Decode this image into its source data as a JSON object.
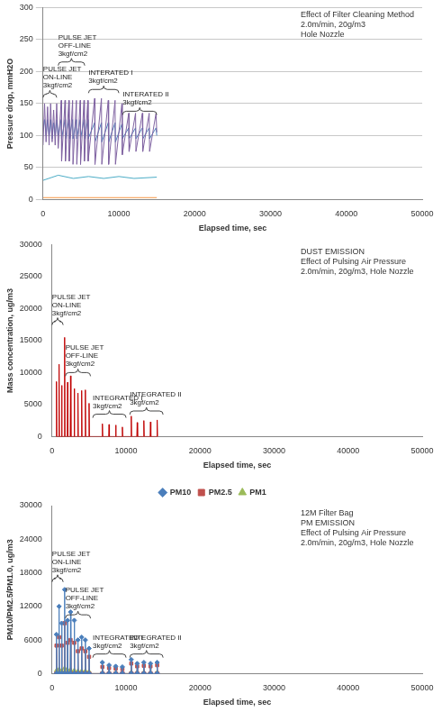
{
  "chart_data": [
    {
      "type": "line",
      "subtitle": [
        "Effect of Filter Cleaning Method",
        "2.0m/min, 20g/m3",
        "Hole Nozzle"
      ],
      "x_label": "Elapsed time, sec",
      "y_label": "Pressure drop, mmH2O",
      "xlim": [
        0,
        50000
      ],
      "xticks": [
        0,
        10000,
        20000,
        30000,
        40000,
        50000
      ],
      "ylim": [
        0,
        300
      ],
      "yticks": [
        0,
        50,
        100,
        150,
        200,
        250,
        300
      ],
      "grid": true,
      "annotations": [
        {
          "text": [
            "PULSE JET",
            "ON-LINE",
            "3kgf/cm2"
          ],
          "x": [
            0,
            1800
          ],
          "y": 165
        },
        {
          "text": [
            "PULSE JET",
            "OFF-LINE",
            "3kgf/cm2"
          ],
          "x": [
            2000,
            5500
          ],
          "y": 215
        },
        {
          "text": [
            "INTERATED I",
            "3kgf/cm2"
          ],
          "x": [
            6000,
            10000
          ],
          "y": 172
        },
        {
          "text": [
            "INTERATED II",
            "3kgf/cm2"
          ],
          "x": [
            10500,
            15000
          ],
          "y": 138
        }
      ],
      "series": [
        {
          "color": "#8064a2",
          "x": [
            0,
            200,
            400,
            600,
            800,
            1000,
            1200,
            1400,
            1600,
            1800,
            2000,
            2400,
            2450,
            2900,
            2950,
            3400,
            3450,
            3900,
            3950,
            4400,
            4450,
            4900,
            4950,
            5400,
            5450,
            5900,
            5950,
            6800,
            6850,
            7700,
            7750,
            8600,
            8650,
            9500,
            9550,
            10400,
            10450,
            11300,
            11350,
            12200,
            12250,
            13100,
            13150,
            14000,
            14050,
            14900,
            15000
          ],
          "values": [
            85,
            150,
            90,
            145,
            85,
            150,
            90,
            140,
            85,
            150,
            80,
            155,
            60,
            155,
            60,
            155,
            60,
            155,
            55,
            155,
            55,
            155,
            55,
            155,
            60,
            155,
            60,
            158,
            55,
            158,
            55,
            155,
            55,
            155,
            55,
            150,
            70,
            135,
            75,
            135,
            75,
            135,
            75,
            135,
            75,
            135,
            105
          ]
        },
        {
          "color": "#4f81bd",
          "x": [
            0,
            200,
            400,
            600,
            800,
            1000,
            1200,
            1400,
            1600,
            1800,
            2000,
            2400,
            2450,
            2900,
            2950,
            3400,
            3450,
            3900,
            3950,
            4400,
            4450,
            4900,
            4950,
            5400,
            5450,
            5900,
            5950,
            6800,
            6850,
            7700,
            7750,
            8600,
            8650,
            9500,
            9550,
            10400,
            10450,
            11300,
            11350,
            12200,
            12250,
            13100,
            13150,
            14000,
            14050,
            14900,
            15000
          ],
          "values": [
            110,
            125,
            100,
            125,
            100,
            125,
            95,
            120,
            100,
            125,
            100,
            125,
            95,
            125,
            95,
            125,
            95,
            125,
            95,
            125,
            95,
            125,
            95,
            125,
            95,
            125,
            95,
            120,
            90,
            120,
            90,
            120,
            90,
            120,
            90,
            118,
            95,
            112,
            95,
            112,
            95,
            112,
            95,
            112,
            95,
            112,
            100
          ]
        },
        {
          "color": "#4bacc6",
          "x": [
            0,
            2000,
            4000,
            6000,
            8000,
            10000,
            12000,
            15000
          ],
          "values": [
            30,
            38,
            33,
            36,
            33,
            36,
            33,
            35
          ]
        },
        {
          "color": "#f79646",
          "x": [
            0,
            15000
          ],
          "values": [
            3,
            3
          ]
        }
      ]
    },
    {
      "type": "line",
      "subtitle": [
        "DUST EMISSION",
        "Effect of Pulsing Air Pressure",
        "2.0m/min, 20g/m3, Hole Nozzle"
      ],
      "x_label": "Elapsed time, sec",
      "y_label": "Mass concentration, ug/m3",
      "xlim": [
        0,
        50000
      ],
      "xticks": [
        0,
        10000,
        20000,
        30000,
        40000,
        50000
      ],
      "ylim": [
        0,
        30000
      ],
      "yticks": [
        0,
        5000,
        10000,
        15000,
        20000,
        25000,
        30000
      ],
      "grid": false,
      "annotations": [
        {
          "text": [
            "PULSE JET",
            "ON-LINE",
            "3kgf/cm2"
          ],
          "x": [
            0,
            1500
          ],
          "y": 18000
        },
        {
          "text": [
            "PULSE JET",
            "OFF-LINE",
            "3kgf/cm2"
          ],
          "x": [
            1800,
            5200
          ],
          "y": 10000
        },
        {
          "text": [
            "INTEGRATED I",
            "3kgf/cm2"
          ],
          "x": [
            5500,
            10000
          ],
          "y": 3500
        },
        {
          "text": [
            "INTEGRATED II",
            "3kgf/cm2"
          ],
          "x": [
            10500,
            15000
          ],
          "y": 4000
        }
      ],
      "x": [
        550,
        600,
        650,
        900,
        950,
        1000,
        1250,
        1300,
        1350,
        1650,
        1700,
        1750,
        2050,
        2100,
        2150,
        2450,
        2500,
        2550,
        2950,
        3000,
        3050,
        3450,
        3500,
        3550,
        3950,
        4000,
        4050,
        4450,
        4500,
        4550,
        4950,
        5000,
        5050,
        6750,
        6800,
        6850,
        7650,
        7700,
        7750,
        8550,
        8600,
        8650,
        9450,
        9500,
        9550,
        10650,
        10700,
        10750,
        11450,
        11500,
        11550,
        12350,
        12400,
        12450,
        13250,
        13300,
        13350,
        14150,
        14200,
        14250
      ],
      "series": [
        {
          "color": "#c00000",
          "values": [
            0,
            8600,
            0,
            0,
            11300,
            0,
            0,
            8000,
            0,
            0,
            15500,
            0,
            0,
            8500,
            0,
            0,
            9500,
            0,
            0,
            7500,
            0,
            0,
            6800,
            0,
            0,
            7200,
            0,
            0,
            7300,
            0,
            0,
            5200,
            0,
            0,
            2000,
            0,
            0,
            1900,
            0,
            0,
            1800,
            0,
            0,
            1500,
            0,
            0,
            3200,
            0,
            0,
            2200,
            0,
            0,
            2500,
            0,
            0,
            2300,
            0,
            0,
            2600,
            0
          ]
        }
      ]
    },
    {
      "type": "line",
      "subtitle": [
        "12M Filter Bag",
        "PM EMISSION",
        "Effect of Pulsing Air Pressure",
        "2.0m/min, 20g/m3, Hole Nozzle"
      ],
      "x_label": "Elapsed time, sec",
      "y_label": "PM10/PM2.5/PM1.0, ug/m3",
      "xlim": [
        0,
        50000
      ],
      "xticks": [
        0,
        10000,
        20000,
        30000,
        40000,
        50000
      ],
      "ylim": [
        0,
        30000
      ],
      "yticks": [
        0,
        6000,
        12000,
        18000,
        24000,
        30000
      ],
      "grid": false,
      "legend": "top",
      "annotations": [
        {
          "text": [
            "PULSE JET",
            "ON-LINE",
            "3kgf/cm2"
          ],
          "x": [
            0,
            1500
          ],
          "y": 17000
        },
        {
          "text": [
            "PULSE JET",
            "OFF-LINE",
            "3kgf/cm2"
          ],
          "x": [
            1800,
            5200
          ],
          "y": 10500
        },
        {
          "text": [
            "INTEGRATED I",
            "3kgf/cm2"
          ],
          "x": [
            5500,
            10000
          ],
          "y": 3500
        },
        {
          "text": [
            "INTEGRATED II",
            "3kgf/cm2"
          ],
          "x": [
            10500,
            15000
          ],
          "y": 3500
        }
      ],
      "x": [
        550,
        600,
        650,
        900,
        950,
        1000,
        1250,
        1300,
        1350,
        1650,
        1700,
        1750,
        2050,
        2100,
        2150,
        2450,
        2500,
        2550,
        2950,
        3000,
        3050,
        3450,
        3500,
        3550,
        3950,
        4000,
        4050,
        4450,
        4500,
        4550,
        4950,
        5000,
        5050,
        6750,
        6800,
        6850,
        7650,
        7700,
        7750,
        8550,
        8600,
        8650,
        9450,
        9500,
        9550,
        10650,
        10700,
        10750,
        11450,
        11500,
        11550,
        12350,
        12400,
        12450,
        13250,
        13300,
        13350,
        14150,
        14200,
        14250
      ],
      "series": [
        {
          "name": "PM10",
          "color": "#4a7ebb",
          "marker": "diamond",
          "values": [
            0,
            7000,
            0,
            0,
            12000,
            0,
            0,
            9000,
            0,
            0,
            15000,
            0,
            0,
            9500,
            0,
            0,
            11000,
            0,
            0,
            9500,
            0,
            0,
            6000,
            0,
            0,
            6500,
            0,
            0,
            6000,
            0,
            0,
            4500,
            0,
            0,
            2000,
            0,
            0,
            1500,
            0,
            0,
            1300,
            0,
            0,
            1200,
            0,
            0,
            2500,
            0,
            0,
            1800,
            0,
            0,
            2000,
            0,
            0,
            1800,
            0,
            0,
            2000,
            0
          ]
        },
        {
          "name": "PM2.5",
          "color": "#c0504d",
          "marker": "square",
          "values": [
            0,
            5000,
            0,
            0,
            6500,
            0,
            0,
            5000,
            0,
            0,
            9000,
            0,
            0,
            5500,
            0,
            0,
            6000,
            0,
            0,
            5500,
            0,
            0,
            4000,
            0,
            0,
            4500,
            0,
            0,
            4000,
            0,
            0,
            3000,
            0,
            0,
            1200,
            0,
            0,
            1000,
            0,
            0,
            900,
            0,
            0,
            800,
            0,
            0,
            1800,
            0,
            0,
            1300,
            0,
            0,
            1400,
            0,
            0,
            1300,
            0,
            0,
            1500,
            0
          ]
        },
        {
          "name": "PM1",
          "color": "#9bbb59",
          "marker": "triangle",
          "values": [
            0,
            600,
            0,
            0,
            800,
            0,
            0,
            600,
            0,
            0,
            1000,
            0,
            0,
            700,
            0,
            0,
            700,
            0,
            0,
            600,
            0,
            0,
            500,
            0,
            0,
            500,
            0,
            0,
            500,
            0,
            0,
            400,
            0,
            0,
            200,
            0,
            0,
            200,
            0,
            0,
            150,
            0,
            0,
            150,
            0,
            0,
            300,
            0,
            0,
            200,
            0,
            0,
            250,
            0,
            0,
            200,
            0,
            0,
            250,
            0
          ]
        }
      ]
    }
  ]
}
